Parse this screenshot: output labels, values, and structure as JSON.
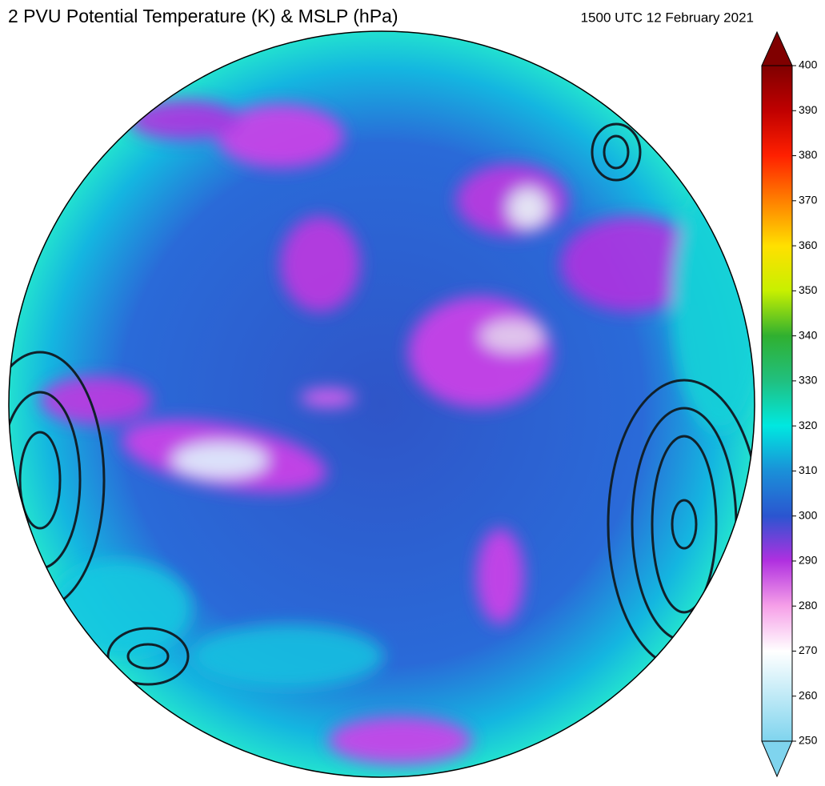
{
  "header": {
    "title": "2 PVU Potential Temperature (K) & MSLP (hPa)",
    "timestamp": "1500 UTC 12 February 2021"
  },
  "colorbar": {
    "lim": [
      250,
      400
    ],
    "ticks": [
      250,
      260,
      270,
      280,
      290,
      300,
      310,
      320,
      330,
      340,
      350,
      360,
      370,
      380,
      390,
      400
    ]
  }
}
